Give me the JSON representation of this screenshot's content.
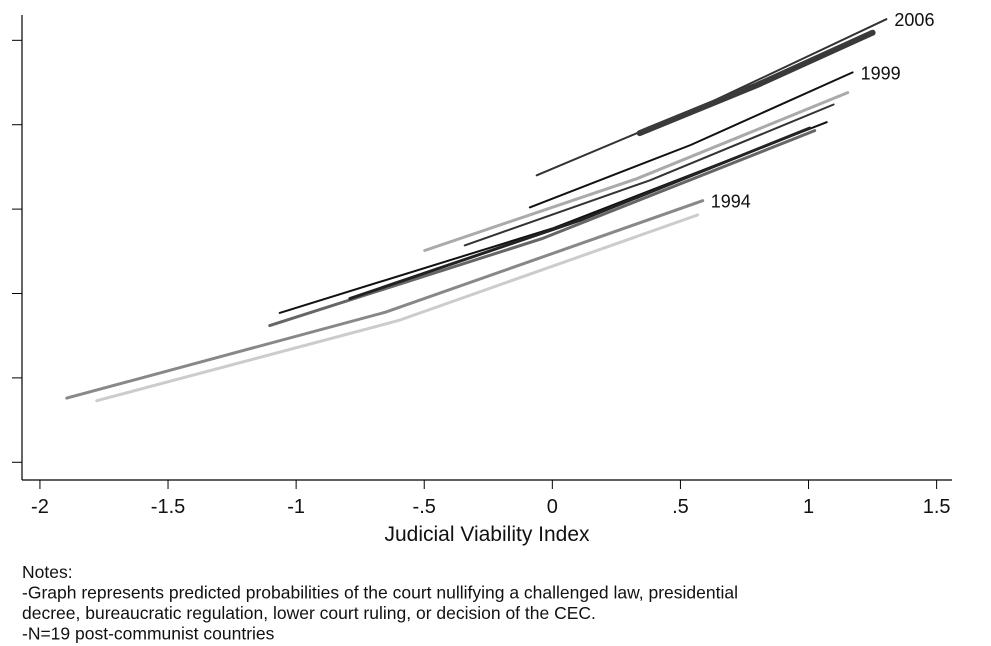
{
  "chart_data": {
    "type": "line",
    "xlabel": "Judicial Viability Index",
    "xlim": [
      -2.07,
      1.56
    ],
    "xticks": [
      -2,
      -1.5,
      -1,
      {
        "value": -0.5,
        "label": "-.5"
      },
      0,
      {
        "value": 0.5,
        "label": ".5"
      },
      1,
      1.5
    ],
    "ylim": [
      -0.21,
      5.3
    ],
    "yticks": [
      0,
      1,
      2,
      3,
      4,
      5
    ],
    "series": [
      {
        "name": "2006",
        "color": "#333333",
        "width": 2,
        "x": [
          -0.061,
          0.62,
          1.304
        ],
        "values": [
          3.4,
          4.27,
          5.25
        ]
      },
      {
        "color": "#3a3a3a",
        "width": 6,
        "x": [
          0.341,
          0.8,
          1.25
        ],
        "values": [
          3.9,
          4.47,
          5.09
        ]
      },
      {
        "name": "1999",
        "color": "#111111",
        "width": 2,
        "x": [
          -0.088,
          0.54,
          1.172
        ],
        "values": [
          3.02,
          3.76,
          4.62
        ]
      },
      {
        "color": "#aaaaaa",
        "width": 3,
        "x": [
          -0.498,
          0.33,
          1.153
        ],
        "values": [
          2.51,
          3.36,
          4.38
        ]
      },
      {
        "color": "#333333",
        "width": 2,
        "x": [
          -0.342,
          0.38,
          1.098
        ],
        "values": [
          2.57,
          3.34,
          4.24
        ]
      },
      {
        "color": "#111111",
        "width": 2,
        "x": [
          -1.064,
          0.0,
          1.071
        ],
        "values": [
          1.77,
          2.77,
          4.03
        ]
      },
      {
        "color": "#666666",
        "width": 3,
        "x": [
          -1.103,
          -0.04,
          1.024
        ],
        "values": [
          1.62,
          2.65,
          3.93
        ]
      },
      {
        "color": "#222222",
        "width": 3,
        "x": [
          -0.79,
          0.11,
          1.004
        ],
        "values": [
          1.94,
          2.87,
          3.96
        ]
      },
      {
        "name": "1994",
        "color": "#888888",
        "width": 3,
        "x": [
          -1.895,
          -0.65,
          0.587
        ],
        "values": [
          0.76,
          1.78,
          3.1
        ]
      },
      {
        "color": "#cccccc",
        "width": 3,
        "x": [
          -1.778,
          -0.6,
          0.567
        ],
        "values": [
          0.73,
          1.68,
          2.93
        ]
      }
    ],
    "notes": [
      "Notes:",
      "-Graph represents predicted probabilities of the court nullifying a challenged law, presidential",
      "decree, bureaucratic regulation, lower court ruling, or decision of the CEC.",
      "-N=19 post-communist countries"
    ]
  }
}
